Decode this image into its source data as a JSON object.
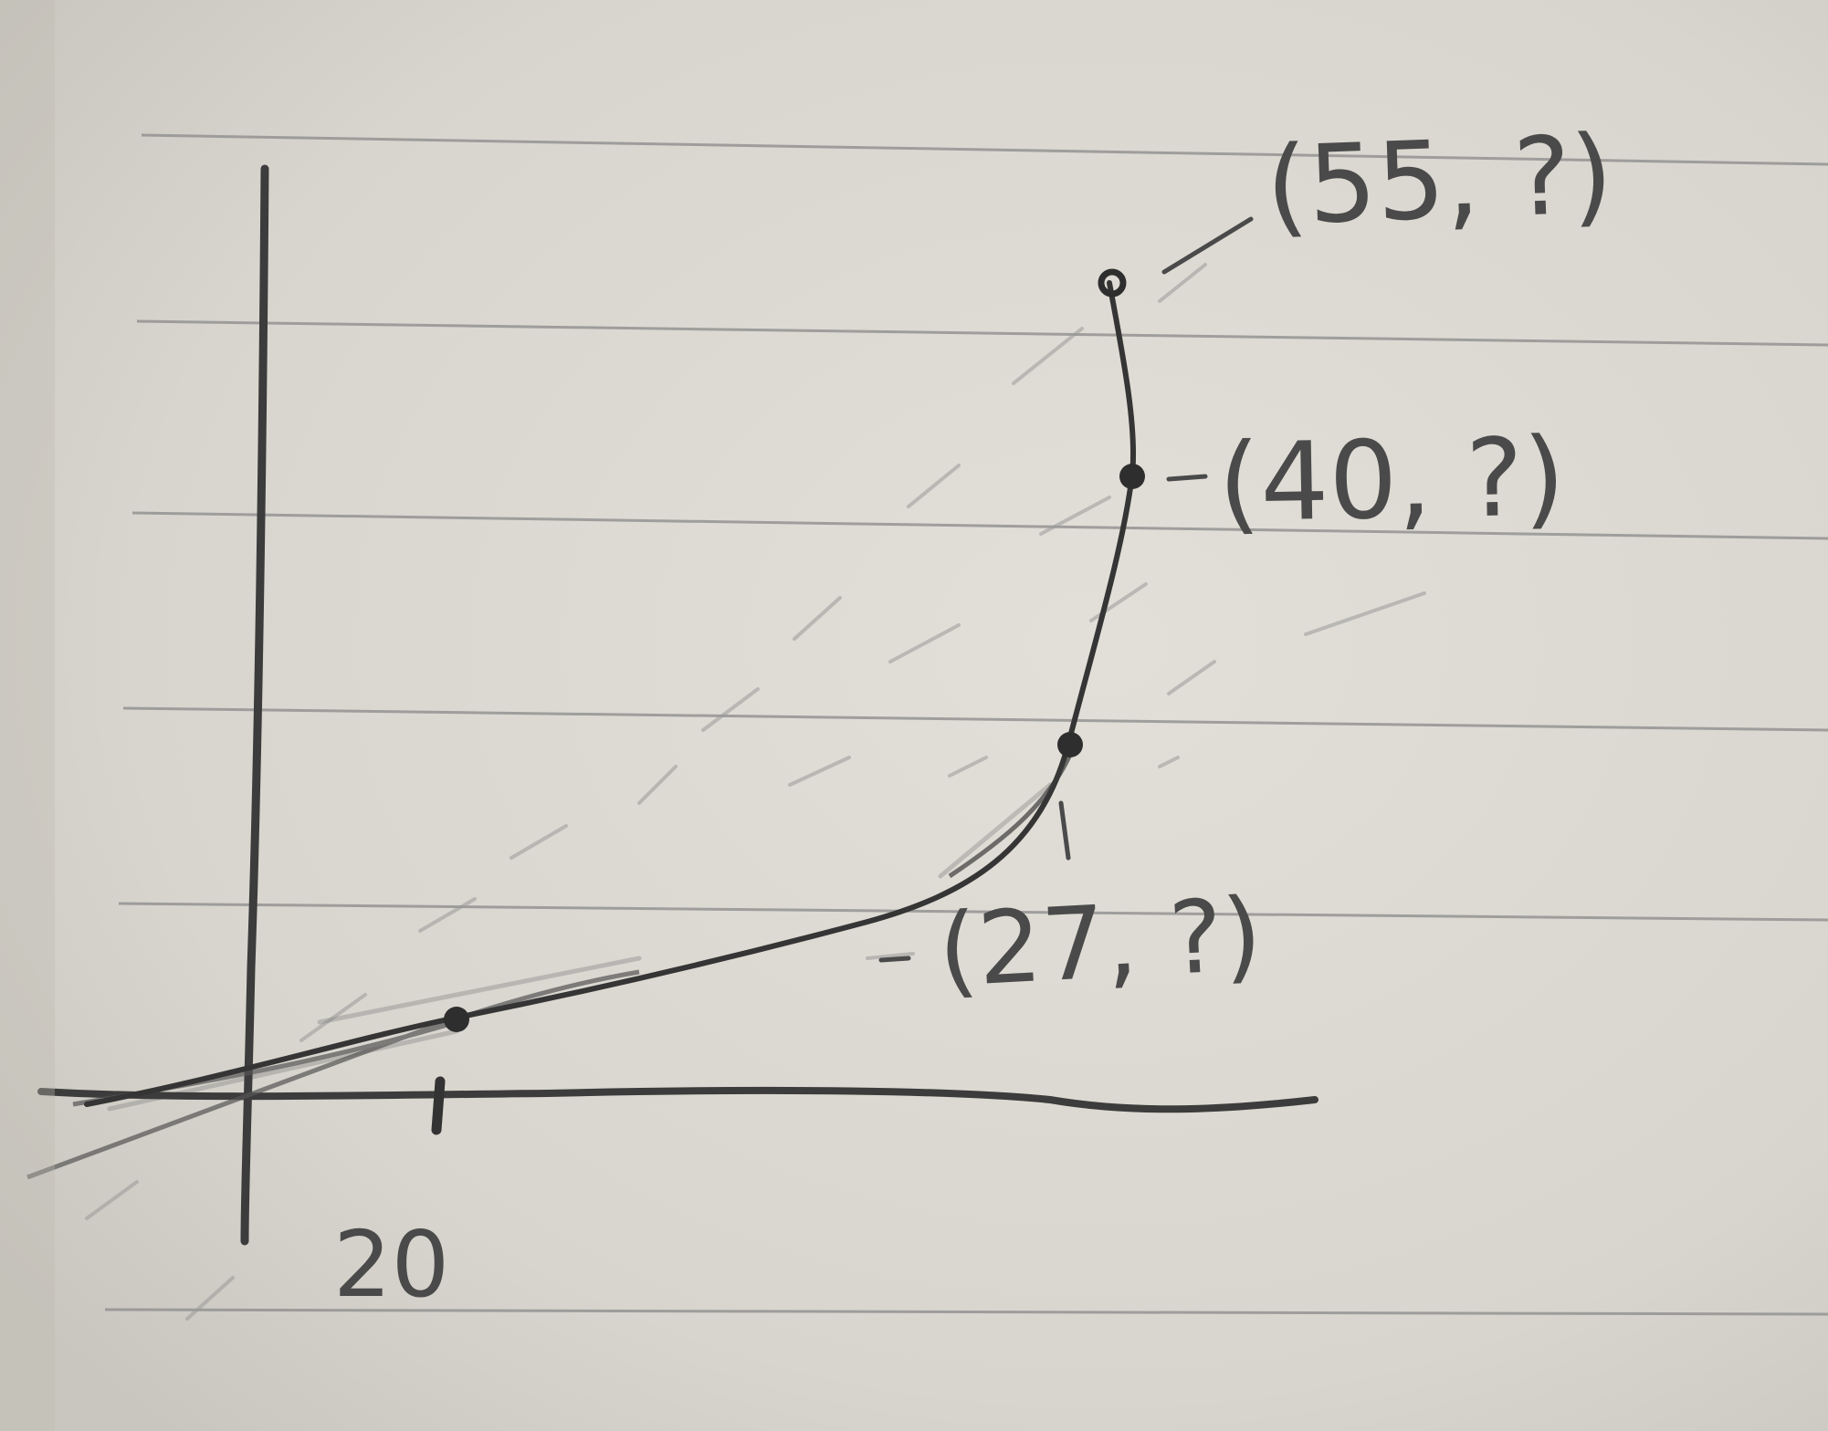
{
  "photo": {
    "subject": "",
    "paper_color": "#dcd9d2",
    "rule_color": "#8c8c8c",
    "pencil_color": "#3c3c3c"
  },
  "sketch": {
    "labels": {
      "x_tick": "20",
      "point_a": "(27, ?)",
      "point_b": "(40, ?)",
      "point_c": "(55, ?)"
    }
  }
}
